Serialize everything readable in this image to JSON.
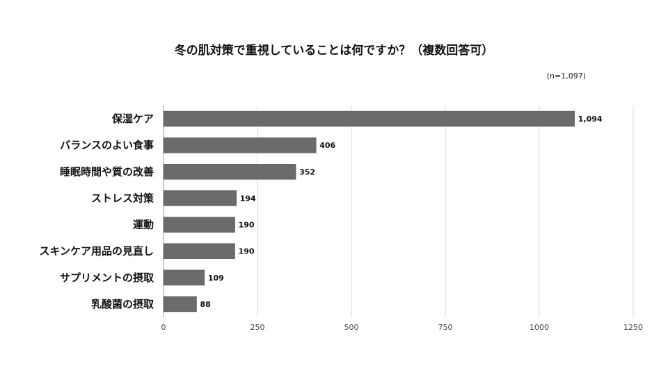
{
  "chart_data": {
    "type": "bar",
    "orientation": "horizontal",
    "title": "冬の肌対策で重視していることは何ですか？（複数回答可）",
    "note": "(n=1,097)",
    "categories": [
      "保湿ケア",
      "バランスのよい食事",
      "睡眠時間や質の改善",
      "ストレス対策",
      "運動",
      "スキンケア用品の見直し",
      "サプリメントの摂取",
      "乳酸菌の摂取"
    ],
    "values": [
      1094,
      406,
      352,
      194,
      190,
      190,
      109,
      88
    ],
    "value_labels": [
      "1,094",
      "406",
      "352",
      "194",
      "190",
      "190",
      "109",
      "88"
    ],
    "xlim": [
      0,
      1250
    ],
    "x_ticks": [
      0,
      250,
      500,
      750,
      1000,
      1250
    ],
    "x_tick_labels": [
      "0",
      "250",
      "500",
      "750",
      "1000",
      "1250"
    ],
    "grid": true,
    "legend": "none",
    "colors": {
      "bar": "#6b6b6b",
      "bar_edge": "#555555",
      "grid": "#d9d9d9",
      "axis": "#999999"
    }
  }
}
